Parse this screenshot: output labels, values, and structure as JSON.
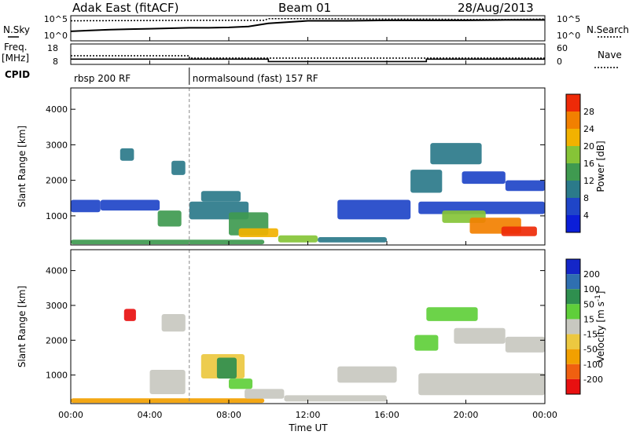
{
  "header": {
    "station": "Adak East (fitACF)",
    "beam": "Beam 01",
    "date": "28/Aug/2013"
  },
  "chart_data": [
    {
      "type": "line",
      "panel": "noise",
      "left_label": "N.Sky",
      "right_label": "N.Search",
      "left_ticks": [
        "10^5",
        "10^0"
      ],
      "right_ticks": [
        "10^5",
        "10^0"
      ],
      "yscale": "log",
      "series": [
        {
          "name": "N.Sky",
          "x": [
            0,
            1,
            2,
            3,
            4,
            5,
            6,
            7,
            8,
            9,
            10,
            12,
            14,
            16,
            18,
            20,
            22,
            24
          ],
          "y": [
            1.8,
            2.0,
            2.2,
            2.3,
            2.4,
            2.5,
            2.6,
            2.6,
            2.7,
            2.9,
            3.6,
            4.2,
            4.2,
            4.3,
            4.3,
            4.3,
            4.4,
            4.4
          ]
        },
        {
          "name": "N.Search",
          "x": [
            0,
            6,
            9.8,
            10,
            12,
            16,
            18,
            20,
            22,
            24
          ],
          "y": [
            4.2,
            4.3,
            4.3,
            4.7,
            4.7,
            4.6,
            4.6,
            4.5,
            4.5,
            4.6
          ]
        }
      ]
    },
    {
      "type": "line",
      "panel": "frequency",
      "left_label": "Freq.",
      "left_unit": "[MHz]",
      "right_label": "Nave",
      "left_ticks": [
        "18",
        "8"
      ],
      "right_ticks": [
        "60",
        "0"
      ],
      "series": [
        {
          "name": "Freq.",
          "x": [
            0,
            10,
            10,
            18,
            18,
            24
          ],
          "y": [
            10.6,
            10.6,
            8.9,
            8.9,
            10.6,
            10.6
          ]
        },
        {
          "name": "Nave",
          "x": [
            0,
            6,
            6,
            24
          ],
          "y": [
            30,
            30,
            20,
            20
          ]
        }
      ]
    },
    {
      "type": "table",
      "panel": "cpid",
      "label": "CPID",
      "segments": [
        {
          "start": 0,
          "end": 6,
          "text": "rbsp 200 RF"
        },
        {
          "start": 6,
          "end": 24,
          "text": "normalsound (fast) 157 RF"
        }
      ]
    },
    {
      "type": "heatmap",
      "panel": "power",
      "ylabel": "Slant Range [km]",
      "yticks": [
        1000,
        2000,
        3000,
        4000
      ],
      "ylim": [
        180,
        4600
      ],
      "colorbar": {
        "label": "Power [dB]",
        "ticks": [
          4,
          8,
          12,
          16,
          20,
          24,
          28
        ],
        "colors": [
          "#0b1ed8",
          "#1f45c8",
          "#2b7a8a",
          "#3f9a50",
          "#86c437",
          "#f2b200",
          "#f28000",
          "#ee2a08"
        ]
      },
      "regions": [
        {
          "t0": 0.0,
          "t1": 9.8,
          "r0": 200,
          "r1": 330,
          "value": 14
        },
        {
          "t0": 0.0,
          "t1": 1.5,
          "r0": 1100,
          "r1": 1450,
          "value": 6
        },
        {
          "t0": 1.5,
          "t1": 4.5,
          "r0": 1150,
          "r1": 1450,
          "value": 5
        },
        {
          "t0": 2.5,
          "t1": 3.2,
          "r0": 2550,
          "r1": 2900,
          "value": 10
        },
        {
          "t0": 4.4,
          "t1": 5.6,
          "r0": 700,
          "r1": 1150,
          "value": 12
        },
        {
          "t0": 5.1,
          "t1": 5.8,
          "r0": 2150,
          "r1": 2550,
          "value": 11
        },
        {
          "t0": 6.0,
          "t1": 9.0,
          "r0": 900,
          "r1": 1400,
          "value": 9
        },
        {
          "t0": 6.6,
          "t1": 8.6,
          "r0": 1400,
          "r1": 1700,
          "value": 10
        },
        {
          "t0": 8.0,
          "t1": 10.0,
          "r0": 450,
          "r1": 1100,
          "value": 13
        },
        {
          "t0": 8.5,
          "t1": 10.5,
          "r0": 400,
          "r1": 650,
          "value": 22
        },
        {
          "t0": 10.5,
          "t1": 12.5,
          "r0": 250,
          "r1": 450,
          "value": 18
        },
        {
          "t0": 12.5,
          "t1": 16.0,
          "r0": 250,
          "r1": 400,
          "value": 10
        },
        {
          "t0": 13.5,
          "t1": 17.2,
          "r0": 900,
          "r1": 1450,
          "value": 6
        },
        {
          "t0": 17.2,
          "t1": 18.8,
          "r0": 1650,
          "r1": 2300,
          "value": 8
        },
        {
          "t0": 17.6,
          "t1": 24.0,
          "r0": 1050,
          "r1": 1400,
          "value": 7
        },
        {
          "t0": 18.8,
          "t1": 21.0,
          "r0": 800,
          "r1": 1150,
          "value": 16
        },
        {
          "t0": 20.2,
          "t1": 22.8,
          "r0": 500,
          "r1": 950,
          "value": 24
        },
        {
          "t0": 21.8,
          "t1": 23.6,
          "r0": 430,
          "r1": 700,
          "value": 28
        },
        {
          "t0": 18.2,
          "t1": 20.8,
          "r0": 2450,
          "r1": 3050,
          "value": 9
        },
        {
          "t0": 19.8,
          "t1": 22.0,
          "r0": 1900,
          "r1": 2250,
          "value": 6
        },
        {
          "t0": 22.0,
          "t1": 24.0,
          "r0": 1700,
          "r1": 2000,
          "value": 5
        }
      ]
    },
    {
      "type": "heatmap",
      "panel": "velocity",
      "ylabel": "Slant Range [km]",
      "yticks": [
        1000,
        2000,
        3000,
        4000
      ],
      "ylim": [
        180,
        4600
      ],
      "colorbar": {
        "label": "Velocity [m s^-1]",
        "ticks": [
          200,
          100,
          50,
          15,
          -15,
          -50,
          -100,
          -200
        ],
        "colors": [
          "#1426c8",
          "#2f6fb0",
          "#2f8f4f",
          "#5fcf3a",
          "#c8c8c0",
          "#ecc840",
          "#f2a000",
          "#f06010",
          "#e81010"
        ]
      },
      "regions": [
        {
          "t0": 0.0,
          "t1": 9.8,
          "r0": 200,
          "r1": 330,
          "value": -60
        },
        {
          "t0": 2.7,
          "t1": 3.3,
          "r0": 2550,
          "r1": 2900,
          "value": -220
        },
        {
          "t0": 4.0,
          "t1": 5.8,
          "r0": 450,
          "r1": 1150,
          "value": 0
        },
        {
          "t0": 4.6,
          "t1": 5.8,
          "r0": 2250,
          "r1": 2750,
          "value": 0
        },
        {
          "t0": 6.6,
          "t1": 8.8,
          "r0": 900,
          "r1": 1600,
          "value": -40
        },
        {
          "t0": 7.4,
          "t1": 8.4,
          "r0": 900,
          "r1": 1500,
          "value": 60
        },
        {
          "t0": 8.0,
          "t1": 9.2,
          "r0": 600,
          "r1": 900,
          "value": 30
        },
        {
          "t0": 8.8,
          "t1": 10.8,
          "r0": 320,
          "r1": 600,
          "value": 0
        },
        {
          "t0": 10.8,
          "t1": 16.0,
          "r0": 240,
          "r1": 420,
          "value": 0
        },
        {
          "t0": 13.5,
          "t1": 16.5,
          "r0": 780,
          "r1": 1250,
          "value": 0
        },
        {
          "t0": 17.6,
          "t1": 24.0,
          "r0": 420,
          "r1": 1050,
          "value": 0
        },
        {
          "t0": 17.4,
          "t1": 18.6,
          "r0": 1700,
          "r1": 2150,
          "value": 30
        },
        {
          "t0": 18.0,
          "t1": 20.6,
          "r0": 2550,
          "r1": 2950,
          "value": 20
        },
        {
          "t0": 19.4,
          "t1": 22.0,
          "r0": 1900,
          "r1": 2350,
          "value": 0
        },
        {
          "t0": 22.0,
          "t1": 24.0,
          "r0": 1650,
          "r1": 2100,
          "value": 0
        }
      ]
    }
  ],
  "x_axis": {
    "label": "Time UT",
    "ticks": [
      "00:00",
      "04:00",
      "08:00",
      "12:00",
      "16:00",
      "20:00",
      "00:00"
    ],
    "range_hours": [
      0,
      24
    ]
  }
}
